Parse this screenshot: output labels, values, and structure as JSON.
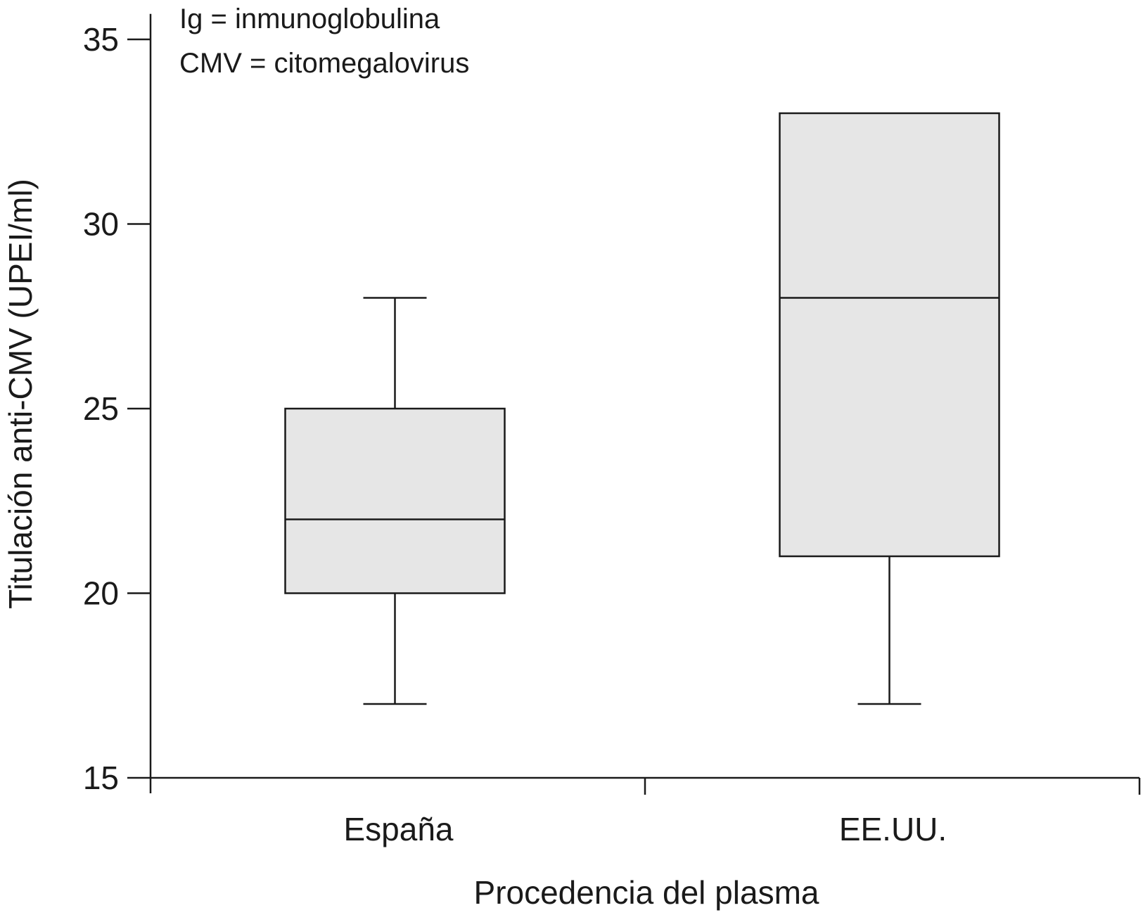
{
  "chart_data": {
    "type": "box",
    "title": "",
    "xlabel": "Procedencia del plasma",
    "ylabel": "Titulación anti-CMV (UPEI/ml)",
    "ylim": [
      15,
      35.5
    ],
    "yticks": [
      15,
      20,
      25,
      30,
      35
    ],
    "grid": false,
    "annotations": [
      "Ig = inmunoglobulina",
      "CMV = citomegalovirus"
    ],
    "categories": [
      "España",
      "EE.UU."
    ],
    "series": [
      {
        "category": "España",
        "min": 17,
        "q1": 20,
        "median": 22,
        "q3": 25,
        "max": 28
      },
      {
        "category": "EE.UU.",
        "min": 17,
        "q1": 21,
        "median": 28,
        "q3": 33,
        "max": 33
      }
    ],
    "colors": {
      "box_fill": "#e6e6e6",
      "stroke": "#1a1a1a"
    }
  }
}
